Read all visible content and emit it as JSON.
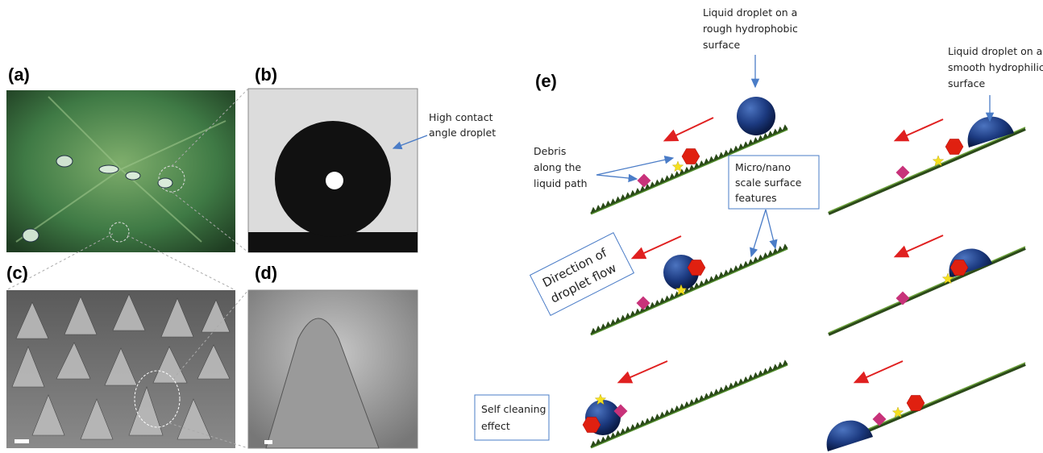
{
  "panel_labels": [
    "(a)",
    "(b)",
    "(c)",
    "(d)",
    "(e)"
  ],
  "annotations": {
    "contact_angle": [
      "High contact",
      "angle droplet"
    ],
    "hydrophobic": [
      "Liquid droplet on a",
      "rough hydrophobic",
      "surface"
    ],
    "hydrophilic": [
      "Liquid droplet on a",
      "smooth hydrophilic",
      "surface"
    ],
    "debris": [
      "Debris",
      "along the",
      "liquid path"
    ],
    "features": [
      "Micro/nano",
      "scale surface",
      "features"
    ],
    "flow": [
      "Direction of",
      "droplet flow"
    ],
    "self_cleaning": [
      "Self cleaning",
      "effect"
    ]
  }
}
